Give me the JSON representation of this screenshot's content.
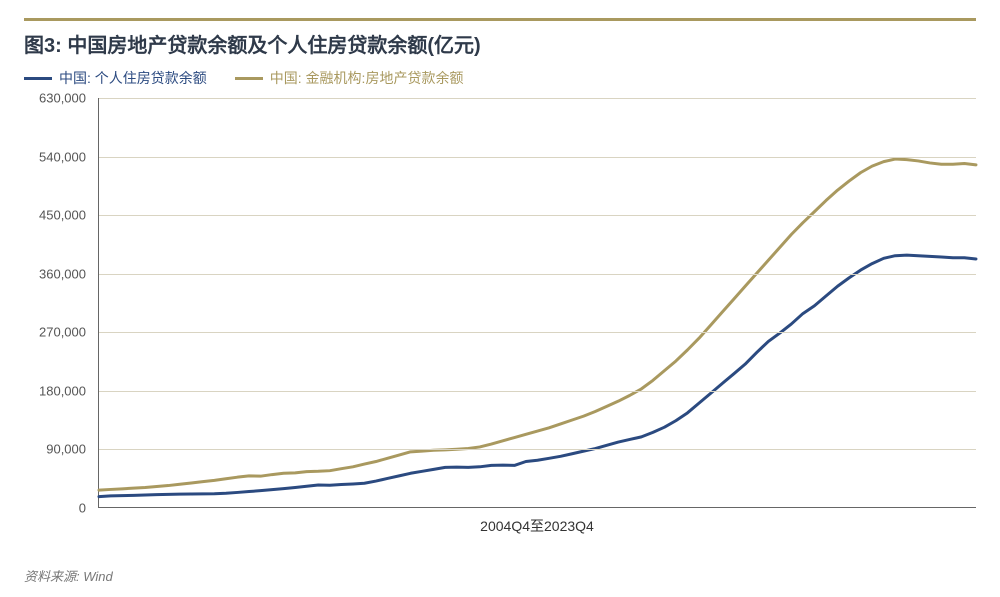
{
  "title": "图3: 中国房地产贷款余额及个人住房贷款余额(亿元)",
  "title_border_color": "#a9995f",
  "title_color": "#2f3a4a",
  "legend": {
    "series1": {
      "label": "中国: 个人住房贷款余额",
      "color": "#2b4a80"
    },
    "series2": {
      "label": "中国: 金融机构:房地产贷款余额",
      "color": "#a9995f"
    }
  },
  "chart": {
    "type": "line",
    "x_label": "2004Q4至2023Q4",
    "ylim": [
      0,
      630000
    ],
    "yticks": [
      0,
      90000,
      180000,
      270000,
      360000,
      450000,
      540000,
      630000
    ],
    "ytick_labels": [
      "0",
      "90,000",
      "180,000",
      "270,000",
      "360,000",
      "450,000",
      "540,000",
      "630,000"
    ],
    "grid_color": "#d9d4c2",
    "background_color": "#ffffff",
    "line_width": 3,
    "n_points": 77,
    "series1_values": [
      16000,
      17000,
      17500,
      18000,
      18500,
      19000,
      19500,
      19800,
      20000,
      20100,
      20500,
      21200,
      22500,
      23800,
      25200,
      26700,
      28300,
      30000,
      32000,
      34000,
      33500,
      34500,
      35500,
      36500,
      40000,
      44000,
      48000,
      52000,
      55000,
      58000,
      61000,
      61500,
      61000,
      62000,
      64000,
      64500,
      64000,
      70000,
      72000,
      75000,
      78000,
      82000,
      86000,
      90000,
      95000,
      100000,
      104000,
      108000,
      115000,
      123000,
      133000,
      145000,
      160000,
      175000,
      190000,
      205000,
      220000,
      238000,
      255000,
      268000,
      282000,
      298000,
      310000,
      325000,
      340000,
      353000,
      365000,
      375000,
      383000,
      387000,
      388000,
      387000,
      386000,
      385000,
      384000,
      384000,
      382000
    ],
    "series2_values": [
      26000,
      27000,
      28000,
      29000,
      30000,
      31500,
      33000,
      35000,
      37000,
      39000,
      41000,
      43500,
      46000,
      48000,
      47500,
      50000,
      52000,
      52500,
      54500,
      55000,
      56000,
      59000,
      62000,
      66000,
      70000,
      75000,
      80000,
      85000,
      86000,
      87500,
      88000,
      89000,
      90000,
      92500,
      97000,
      102000,
      107000,
      112000,
      117000,
      122000,
      128000,
      134000,
      140000,
      147000,
      155000,
      163000,
      172000,
      182000,
      195000,
      210000,
      225000,
      242000,
      260000,
      280000,
      300000,
      320000,
      340000,
      360000,
      380000,
      400000,
      420000,
      438000,
      455000,
      472000,
      488000,
      502000,
      515000,
      525000,
      532000,
      536000,
      535000,
      533000,
      530000,
      528000,
      528000,
      529000,
      527000
    ]
  },
  "source": "资料来源: Wind",
  "label_fontsize": 13,
  "axis_color": "#666666"
}
